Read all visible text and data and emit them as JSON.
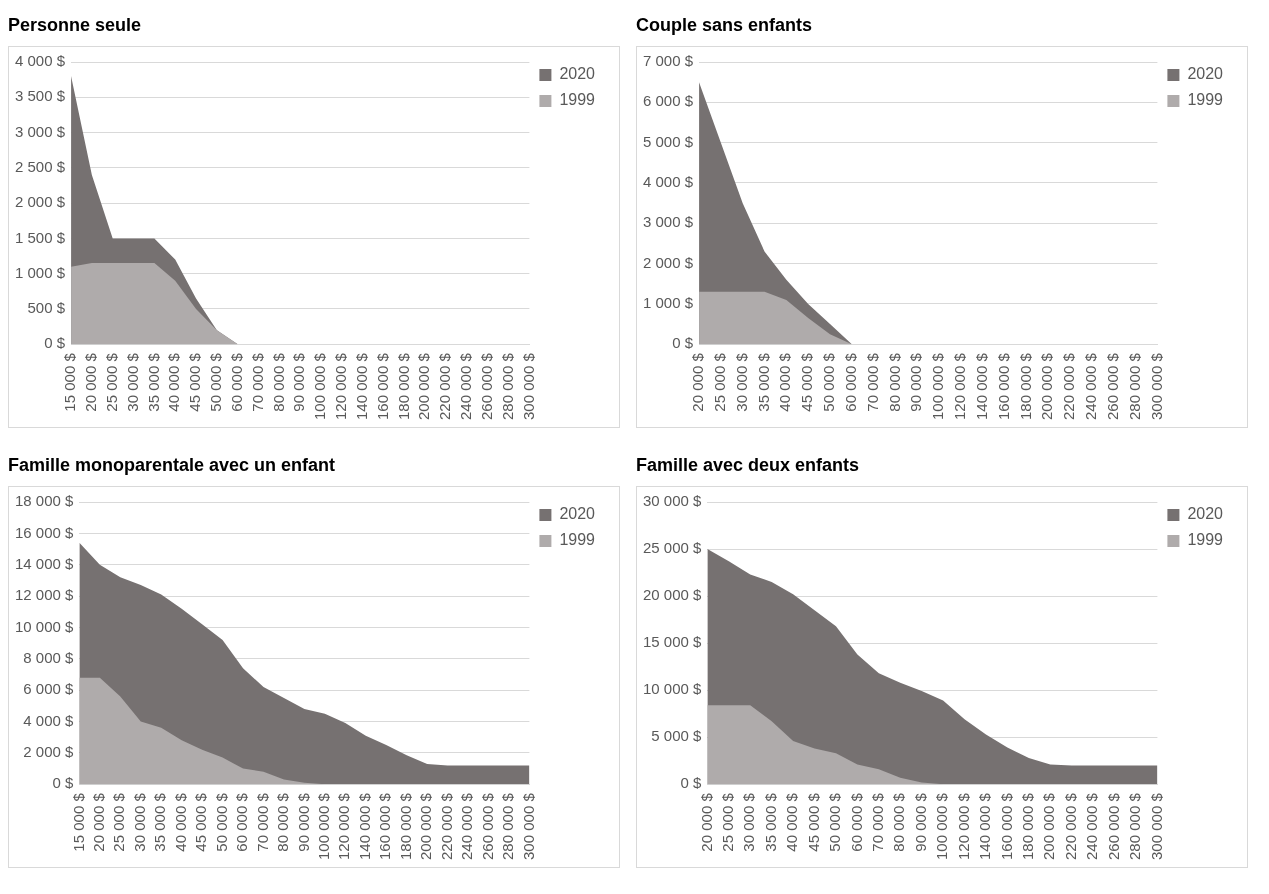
{
  "chart_data": [
    {
      "type": "area",
      "title": "Personne seule",
      "categories": [
        "15 000 $",
        "20 000 $",
        "25 000 $",
        "30 000 $",
        "35 000 $",
        "40 000 $",
        "45 000 $",
        "50 000 $",
        "60 000 $",
        "70 000 $",
        "80 000 $",
        "90 000 $",
        "100 000 $",
        "120 000 $",
        "140 000 $",
        "160 000 $",
        "180 000 $",
        "200 000 $",
        "220 000 $",
        "240 000 $",
        "260 000 $",
        "280 000 $",
        "300 000 $"
      ],
      "series": [
        {
          "name": "2020",
          "color": "#767171",
          "values": [
            3800,
            2400,
            1500,
            1500,
            1500,
            1200,
            650,
            200,
            0,
            0,
            0,
            0,
            0,
            0,
            0,
            0,
            0,
            0,
            0,
            0,
            0,
            0,
            0
          ]
        },
        {
          "name": "1999",
          "color": "#afabab",
          "values": [
            1100,
            1150,
            1150,
            1150,
            1150,
            900,
            500,
            200,
            0,
            0,
            0,
            0,
            0,
            0,
            0,
            0,
            0,
            0,
            0,
            0,
            0,
            0,
            0
          ]
        }
      ],
      "ylim": [
        0,
        4000
      ],
      "yticks": [
        {
          "value": 0,
          "label": "0 $"
        },
        {
          "value": 500,
          "label": "500 $"
        },
        {
          "value": 1000,
          "label": "1 000 $"
        },
        {
          "value": 1500,
          "label": "1 500 $"
        },
        {
          "value": 2000,
          "label": "2 000 $"
        },
        {
          "value": 2500,
          "label": "2 500 $"
        },
        {
          "value": 3000,
          "label": "3 000 $"
        },
        {
          "value": 3500,
          "label": "3 500 $"
        },
        {
          "value": 4000,
          "label": "4 000 $"
        }
      ],
      "grid": "y",
      "legend": "top right"
    },
    {
      "type": "area",
      "title": "Couple sans enfants",
      "categories": [
        "20 000 $",
        "25 000 $",
        "30 000 $",
        "35 000 $",
        "40 000 $",
        "45 000 $",
        "50 000 $",
        "60 000 $",
        "70 000 $",
        "80 000 $",
        "90 000 $",
        "100 000 $",
        "120 000 $",
        "140 000 $",
        "160 000 $",
        "180 000 $",
        "200 000 $",
        "220 000 $",
        "240 000 $",
        "260 000 $",
        "280 000 $",
        "300 000 $"
      ],
      "series": [
        {
          "name": "2020",
          "color": "#767171",
          "values": [
            6500,
            5000,
            3500,
            2300,
            1600,
            1000,
            500,
            0,
            0,
            0,
            0,
            0,
            0,
            0,
            0,
            0,
            0,
            0,
            0,
            0,
            0,
            0
          ]
        },
        {
          "name": "1999",
          "color": "#afabab",
          "values": [
            1300,
            1300,
            1300,
            1300,
            1100,
            650,
            250,
            0,
            0,
            0,
            0,
            0,
            0,
            0,
            0,
            0,
            0,
            0,
            0,
            0,
            0,
            0
          ]
        }
      ],
      "ylim": [
        0,
        7000
      ],
      "yticks": [
        {
          "value": 0,
          "label": "0 $"
        },
        {
          "value": 1000,
          "label": "1 000 $"
        },
        {
          "value": 2000,
          "label": "2 000 $"
        },
        {
          "value": 3000,
          "label": "3 000 $"
        },
        {
          "value": 4000,
          "label": "4 000 $"
        },
        {
          "value": 5000,
          "label": "5 000 $"
        },
        {
          "value": 6000,
          "label": "6 000 $"
        },
        {
          "value": 7000,
          "label": "7 000 $"
        }
      ],
      "grid": "y",
      "legend": "top right"
    },
    {
      "type": "area",
      "title": "Famille monoparentale avec un enfant",
      "categories": [
        "15 000 $",
        "20 000 $",
        "25 000 $",
        "30 000 $",
        "35 000 $",
        "40 000 $",
        "45 000 $",
        "50 000 $",
        "60 000 $",
        "70 000 $",
        "80 000 $",
        "90 000 $",
        "100 000 $",
        "120 000 $",
        "140 000 $",
        "160 000 $",
        "180 000 $",
        "200 000 $",
        "220 000 $",
        "240 000 $",
        "260 000 $",
        "280 000 $",
        "300 000 $"
      ],
      "series": [
        {
          "name": "2020",
          "color": "#767171",
          "values": [
            15400,
            14000,
            13200,
            12700,
            12100,
            11200,
            10200,
            9200,
            7400,
            6200,
            5500,
            4800,
            4500,
            3900,
            3100,
            2500,
            1850,
            1300,
            1200,
            1200,
            1200,
            1200,
            1200
          ]
        },
        {
          "name": "1999",
          "color": "#afabab",
          "values": [
            6800,
            6800,
            5600,
            4000,
            3600,
            2800,
            2200,
            1700,
            1000,
            800,
            300,
            100,
            0,
            0,
            0,
            0,
            0,
            0,
            0,
            0,
            0,
            0,
            0
          ]
        }
      ],
      "ylim": [
        0,
        18000
      ],
      "yticks": [
        {
          "value": 0,
          "label": "0 $"
        },
        {
          "value": 2000,
          "label": "2 000 $"
        },
        {
          "value": 4000,
          "label": "4 000 $"
        },
        {
          "value": 6000,
          "label": "6 000 $"
        },
        {
          "value": 8000,
          "label": "8 000 $"
        },
        {
          "value": 10000,
          "label": "10 000 $"
        },
        {
          "value": 12000,
          "label": "12 000 $"
        },
        {
          "value": 14000,
          "label": "14 000 $"
        },
        {
          "value": 16000,
          "label": "16 000 $"
        },
        {
          "value": 18000,
          "label": "18 000 $"
        }
      ],
      "grid": "y",
      "legend": "top right"
    },
    {
      "type": "area",
      "title": "Famille avec deux enfants",
      "categories": [
        "20 000 $",
        "25 000 $",
        "30 000 $",
        "35 000 $",
        "40 000 $",
        "45 000 $",
        "50 000 $",
        "60 000 $",
        "70 000 $",
        "80 000 $",
        "90 000 $",
        "100 000 $",
        "120 000 $",
        "140 000 $",
        "160 000 $",
        "180 000 $",
        "200 000 $",
        "220 000 $",
        "240 000 $",
        "260 000 $",
        "280 000 $",
        "300 000 $"
      ],
      "series": [
        {
          "name": "2020",
          "color": "#767171",
          "values": [
            25000,
            23700,
            22300,
            21500,
            20200,
            18500,
            16800,
            13800,
            11800,
            10800,
            9900,
            8900,
            6900,
            5300,
            3900,
            2800,
            2100,
            2000,
            2000,
            2000,
            2000,
            2000
          ]
        },
        {
          "name": "1999",
          "color": "#afabab",
          "values": [
            8400,
            8400,
            8400,
            6700,
            4600,
            3800,
            3300,
            2100,
            1600,
            700,
            200,
            0,
            0,
            0,
            0,
            0,
            0,
            0,
            0,
            0,
            0,
            0
          ]
        }
      ],
      "ylim": [
        0,
        30000
      ],
      "yticks": [
        {
          "value": 0,
          "label": "0 $"
        },
        {
          "value": 5000,
          "label": "5 000 $"
        },
        {
          "value": 10000,
          "label": "10 000 $"
        },
        {
          "value": 15000,
          "label": "15 000 $"
        },
        {
          "value": 20000,
          "label": "20 000 $"
        },
        {
          "value": 25000,
          "label": "25 000 $"
        },
        {
          "value": 30000,
          "label": "30 000 $"
        }
      ],
      "grid": "y",
      "legend": "top right"
    }
  ]
}
